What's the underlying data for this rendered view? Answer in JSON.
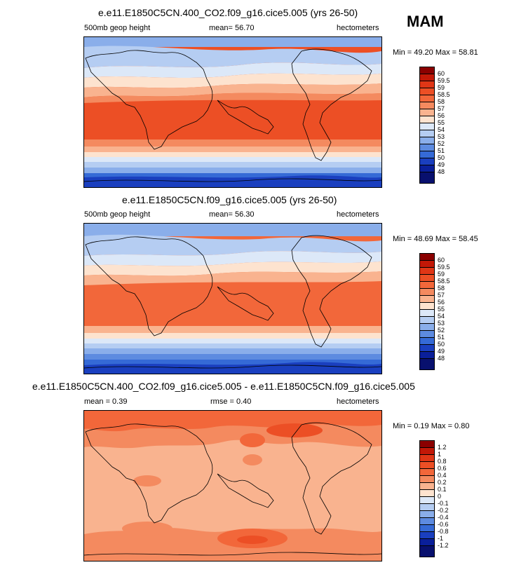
{
  "season": "MAM",
  "panels": [
    {
      "title": "e.e11.E1850C5CN.400_CO2.f09_g16.cice5.005 (yrs 26-50)",
      "left": "500mb geop height",
      "center": "mean=  56.70",
      "right": "hectometers",
      "minmax": "Min =  49.20 Max =  58.81",
      "colorbar": {
        "labels": [
          "60",
          "59.5",
          "59",
          "58.5",
          "58",
          "57",
          "56",
          "55",
          "54",
          "53",
          "52",
          "51",
          "50",
          "49",
          "48"
        ],
        "colors": [
          "#8b0000",
          "#c21807",
          "#e03616",
          "#ec4f25",
          "#f2673a",
          "#f48a5f",
          "#f9b38f",
          "#fde3cf",
          "#dce8f8",
          "#b5cdf2",
          "#8aaeea",
          "#5d8be0",
          "#356ad6",
          "#1a3fbf",
          "#0a1f9a",
          "#08106e"
        ]
      }
    },
    {
      "title": "e.e11.E1850C5CN.f09_g16.cice5.005 (yrs 26-50)",
      "left": "500mb geop height",
      "center": "mean=  56.30",
      "right": "hectometers",
      "minmax": "Min =  48.69 Max =  58.45",
      "colorbar": {
        "labels": [
          "60",
          "59.5",
          "59",
          "58.5",
          "58",
          "57",
          "56",
          "55",
          "54",
          "53",
          "52",
          "51",
          "50",
          "49",
          "48"
        ],
        "colors": [
          "#8b0000",
          "#c21807",
          "#e03616",
          "#ec4f25",
          "#f2673a",
          "#f48a5f",
          "#f9b38f",
          "#fde3cf",
          "#dce8f8",
          "#b5cdf2",
          "#8aaeea",
          "#5d8be0",
          "#356ad6",
          "#1a3fbf",
          "#0a1f9a",
          "#08106e"
        ]
      }
    },
    {
      "title": "e.e11.E1850C5CN.400_CO2.f09_g16.cice5.005 - e.e11.E1850C5CN.f09_g16.cice5.005",
      "left": "mean =   0.39",
      "center": "rmse =   0.40",
      "right": "hectometers",
      "minmax": "Min =   0.19 Max =   0.80",
      "colorbar": {
        "labels": [
          "1.2",
          "1",
          "0.8",
          "0.6",
          "0.4",
          "0.2",
          "0.1",
          "0",
          "-0.1",
          "-0.2",
          "-0.4",
          "-0.6",
          "-0.8",
          "-1",
          "-1.2"
        ],
        "colors": [
          "#8b0000",
          "#c21807",
          "#e03616",
          "#ec4f25",
          "#f2673a",
          "#f48a5f",
          "#f9b38f",
          "#fde3cf",
          "#dce8f8",
          "#b5cdf2",
          "#8aaeea",
          "#5d8be0",
          "#356ad6",
          "#1a3fbf",
          "#0a1f9a",
          "#08106e"
        ]
      }
    }
  ]
}
